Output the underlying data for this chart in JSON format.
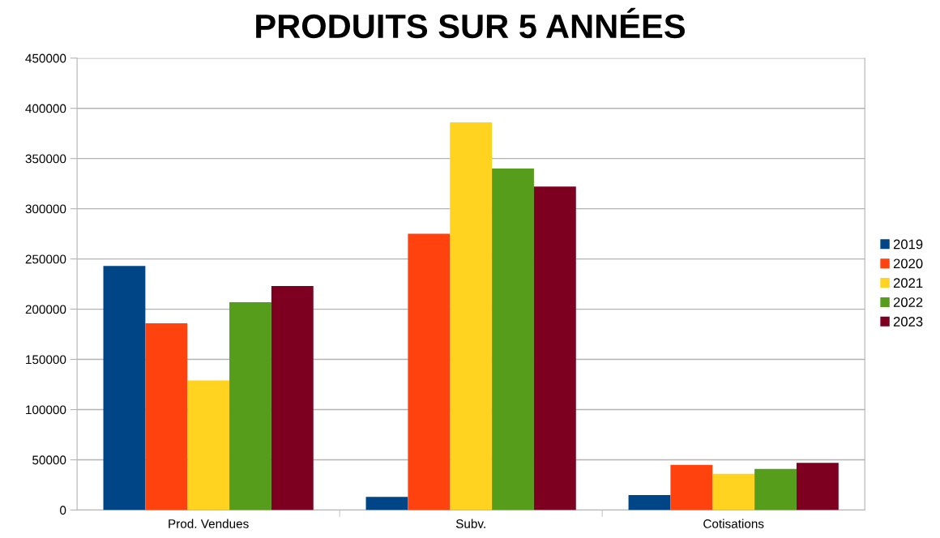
{
  "chart_data": {
    "type": "bar",
    "title": "PRODUITS SUR 5 ANNÉES",
    "categories": [
      "Prod. Vendues",
      "Subv.",
      "Cotisations"
    ],
    "series": [
      {
        "name": "2019",
        "color": "#004586",
        "values": [
          243000,
          13000,
          15000
        ]
      },
      {
        "name": "2020",
        "color": "#ff420e",
        "values": [
          186000,
          275000,
          45000
        ]
      },
      {
        "name": "2021",
        "color": "#ffd320",
        "values": [
          129000,
          386000,
          36000
        ]
      },
      {
        "name": "2022",
        "color": "#579d1c",
        "values": [
          207000,
          340000,
          41000
        ]
      },
      {
        "name": "2023",
        "color": "#7e0021",
        "values": [
          223000,
          322000,
          47000
        ]
      }
    ],
    "ylim": [
      0,
      450000
    ],
    "yticks": [
      0,
      50000,
      100000,
      150000,
      200000,
      250000,
      300000,
      350000,
      400000,
      450000
    ],
    "grid": "y",
    "legend": "right"
  }
}
